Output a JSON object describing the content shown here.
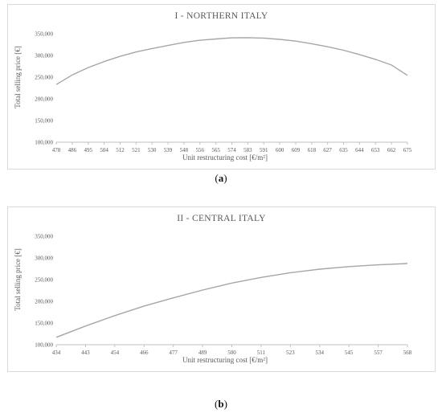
{
  "chart_data": [
    {
      "type": "line",
      "title": "I - NORTHERN ITALY",
      "xlabel": "Unit restructuring cost [€/m²]",
      "ylabel": "Total selling price [€]",
      "ylim": [
        100000,
        350000
      ],
      "yticks": [
        "100,000",
        "150,000",
        "200,000",
        "250,000",
        "300,000",
        "350,000"
      ],
      "categories": [
        "478",
        "486",
        "495",
        "504",
        "512",
        "521",
        "530",
        "539",
        "548",
        "556",
        "565",
        "574",
        "583",
        "591",
        "600",
        "609",
        "618",
        "627",
        "635",
        "644",
        "653",
        "662",
        "675"
      ],
      "values": [
        233000,
        255000,
        272000,
        286000,
        298000,
        308000,
        316000,
        323000,
        330000,
        335000,
        338000,
        340500,
        341000,
        340000,
        337000,
        333000,
        327000,
        320000,
        312000,
        302000,
        291000,
        278000,
        254000
      ],
      "line_color": "#a6a6a6",
      "grid": false,
      "caption": "a"
    },
    {
      "type": "line",
      "title": "II - CENTRAL ITALY",
      "xlabel": "Unit restructuring cost [€/m²]",
      "ylabel": "Total selling price [€]",
      "ylim": [
        100000,
        350000
      ],
      "yticks": [
        "100,000",
        "150,000",
        "200,000",
        "250,000",
        "300,000",
        "350,000"
      ],
      "categories": [
        "434",
        "443",
        "454",
        "466",
        "477",
        "489",
        "500",
        "511",
        "523",
        "534",
        "545",
        "557",
        "568"
      ],
      "values": [
        117000,
        143000,
        167000,
        189000,
        208000,
        226000,
        242000,
        255000,
        266000,
        274000,
        280000,
        284000,
        287000
      ],
      "line_color": "#a6a6a6",
      "grid": false,
      "caption": "b"
    }
  ]
}
